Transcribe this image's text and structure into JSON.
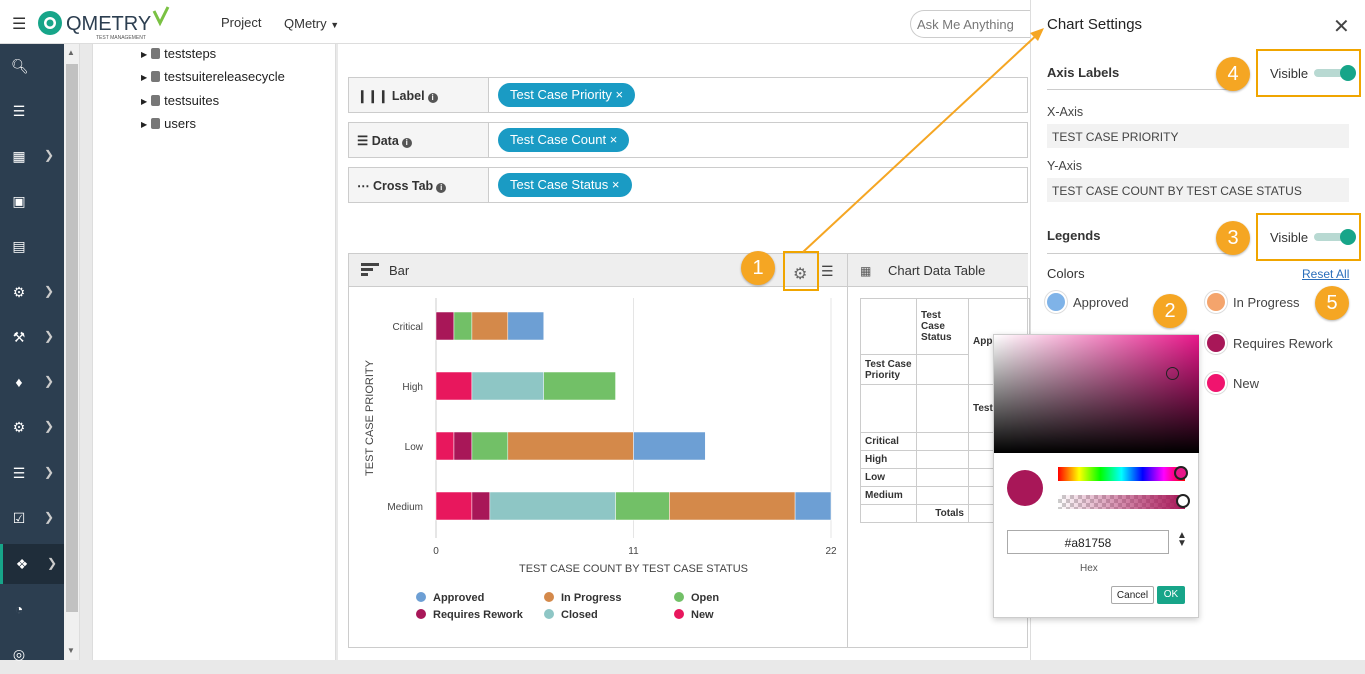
{
  "topbar": {
    "project_label": "Project",
    "project_value": "QMetry",
    "search_placeholder": "Ask Me Anything",
    "logo_text": "QMETRY",
    "logo_sub": "TEST MANAGEMENT"
  },
  "tree": {
    "items": [
      "teststeps",
      "testsuitereleasecycle",
      "testsuites",
      "users"
    ]
  },
  "fields": [
    {
      "label": "Label",
      "chip": "Test Case Priority"
    },
    {
      "label": "Data",
      "chip": "Test Case Count"
    },
    {
      "label": "Cross Tab",
      "chip": "Test Case Status"
    }
  ],
  "chart_panel": {
    "title": "Bar"
  },
  "table_panel": {
    "title": "Chart Data Table",
    "header_col": "Test Case Status",
    "header_row": "Test Case Priority",
    "col_fragment_1": "Appr",
    "col_fragment_2": "Test Cou",
    "rows": [
      "Critical",
      "High",
      "Low",
      "Medium"
    ],
    "totals": "Totals"
  },
  "chart_data": {
    "type": "bar",
    "orientation": "horizontal",
    "stacked": true,
    "categories": [
      "Critical",
      "High",
      "Low",
      "Medium"
    ],
    "xlabel": "TEST CASE COUNT BY TEST CASE STATUS",
    "ylabel": "TEST CASE PRIORITY",
    "xlim": [
      0,
      22
    ],
    "xticks": [
      0,
      11,
      22
    ],
    "legend_position": "bottom",
    "series": [
      {
        "name": "New",
        "color": "#e8175d",
        "values": [
          0,
          2,
          1,
          2
        ]
      },
      {
        "name": "Requires Rework",
        "color": "#a81758",
        "values": [
          1,
          0,
          1,
          1
        ]
      },
      {
        "name": "Closed",
        "color": "#8ec6c5",
        "values": [
          0,
          4,
          0,
          7
        ]
      },
      {
        "name": "Open",
        "color": "#72c067",
        "values": [
          1,
          4,
          2,
          3
        ]
      },
      {
        "name": "In Progress",
        "color": "#d4894a",
        "values": [
          2,
          0,
          7,
          7
        ]
      },
      {
        "name": "Approved",
        "color": "#6d9fd4",
        "values": [
          2,
          0,
          4,
          2
        ]
      }
    ],
    "legend": [
      {
        "name": "Approved",
        "color": "#6d9fd4"
      },
      {
        "name": "In Progress",
        "color": "#d4894a"
      },
      {
        "name": "Open",
        "color": "#72c067"
      },
      {
        "name": "Requires Rework",
        "color": "#a81758"
      },
      {
        "name": "Closed",
        "color": "#8ec6c5"
      },
      {
        "name": "New",
        "color": "#e8175d"
      }
    ]
  },
  "settings": {
    "title": "Chart Settings",
    "axis_labels": "Axis Labels",
    "visible": "Visible",
    "x_axis_label": "X-Axis",
    "x_axis_value": "TEST CASE PRIORITY",
    "y_axis_label": "Y-Axis",
    "y_axis_value": "TEST CASE COUNT BY TEST CASE STATUS",
    "legends": "Legends",
    "colors": "Colors",
    "reset_all": "Reset All",
    "swatches": [
      {
        "name": "Approved",
        "color": "#7fb3e8"
      },
      {
        "name": "In Progress",
        "color": "#f4a46c"
      },
      {
        "name": "Requires Rework",
        "color": "#a81758"
      },
      {
        "name": "New",
        "color": "#f0146e"
      }
    ]
  },
  "picker": {
    "hex": "#a81758",
    "hex_label": "Hex",
    "cancel": "Cancel",
    "ok": "OK",
    "color": "#a81758"
  },
  "callouts": [
    "1",
    "2",
    "3",
    "4",
    "5"
  ],
  "accent": "#f5a623"
}
